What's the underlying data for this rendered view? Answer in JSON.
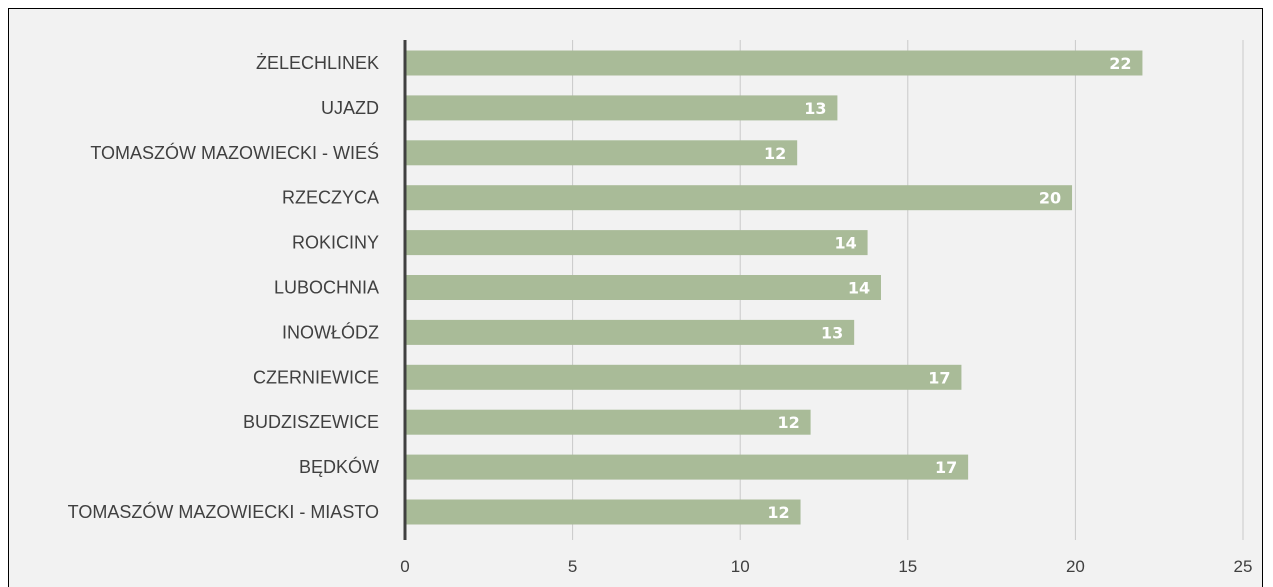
{
  "colors": {
    "bar": "#a9bb98",
    "background": "#f2f2f2",
    "gridline": "#c9c9c9",
    "axis": "#404040",
    "label_text": "#404040",
    "data_label_text": "#ffffff"
  },
  "chart_data": {
    "type": "bar",
    "orientation": "horizontal",
    "title": "",
    "xlabel": "",
    "ylabel": "",
    "categories": [
      "ŻELECHLINEK",
      "UJAZD",
      "TOMASZÓW MAZOWIECKI - WIEŚ",
      "RZECZYCA",
      "ROKICINY",
      "LUBOCHNIA",
      "INOWŁÓDZ",
      "CZERNIEWICE",
      "BUDZISZEWICE",
      "BĘDKÓW",
      "TOMASZÓW MAZOWIECKI - MIASTO"
    ],
    "values": [
      22,
      12.9,
      11.7,
      19.9,
      13.8,
      14.2,
      13.4,
      16.6,
      12.1,
      16.8,
      11.8
    ],
    "data_labels": [
      "22",
      "13",
      "12",
      "20",
      "14",
      "14",
      "13",
      "17",
      "12",
      "17",
      "12"
    ],
    "xlim": [
      0,
      25
    ],
    "xticks": [
      "0",
      "5",
      "10",
      "15",
      "20",
      "25"
    ],
    "grid": "vertical",
    "legend": "none"
  }
}
